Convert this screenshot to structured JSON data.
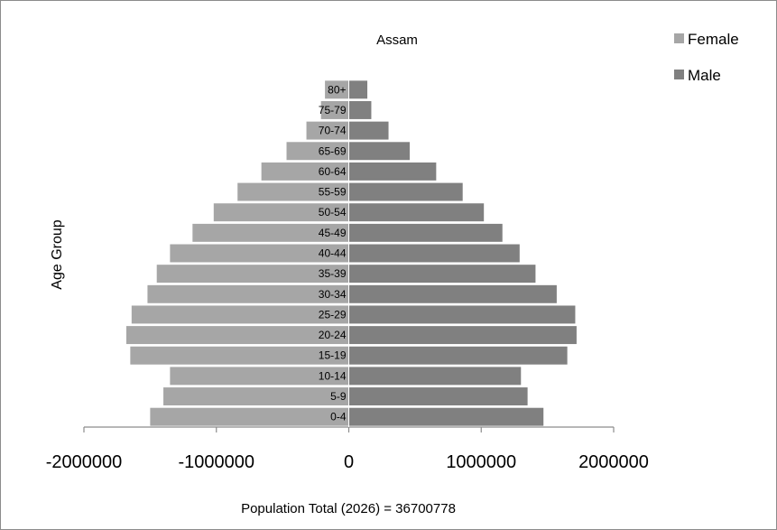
{
  "chart_data": {
    "type": "bar",
    "orientation": "horizontal",
    "title": "Assam",
    "ylabel": "Age Group",
    "xlabel": "",
    "categories": [
      "0-4",
      "5-9",
      "10-14",
      "15-19",
      "20-24",
      "25-29",
      "30-34",
      "35-39",
      "40-44",
      "45-49",
      "50-54",
      "55-59",
      "60-64",
      "65-69",
      "70-74",
      "75-79",
      "80+"
    ],
    "series": [
      {
        "name": "Female",
        "color": "#a6a6a6",
        "values": [
          -1500000,
          -1400000,
          -1350000,
          -1650000,
          -1680000,
          -1640000,
          -1520000,
          -1450000,
          -1350000,
          -1180000,
          -1020000,
          -840000,
          -660000,
          -470000,
          -320000,
          -210000,
          -180000
        ]
      },
      {
        "name": "Male",
        "color": "#808080",
        "values": [
          1470000,
          1350000,
          1300000,
          1650000,
          1720000,
          1710000,
          1570000,
          1410000,
          1290000,
          1160000,
          1020000,
          860000,
          660000,
          460000,
          300000,
          170000,
          140000
        ]
      }
    ],
    "xlim": [
      -2000000,
      2000000
    ],
    "xticks": [
      -2000000,
      -1000000,
      0,
      1000000,
      2000000
    ],
    "xtick_labels": [
      "-2000000",
      "-1000000",
      "0",
      "1000000",
      "2000000"
    ],
    "grid": false,
    "legend_position": "top-right",
    "annotation": "Population  Total (2026) = 36700778"
  }
}
